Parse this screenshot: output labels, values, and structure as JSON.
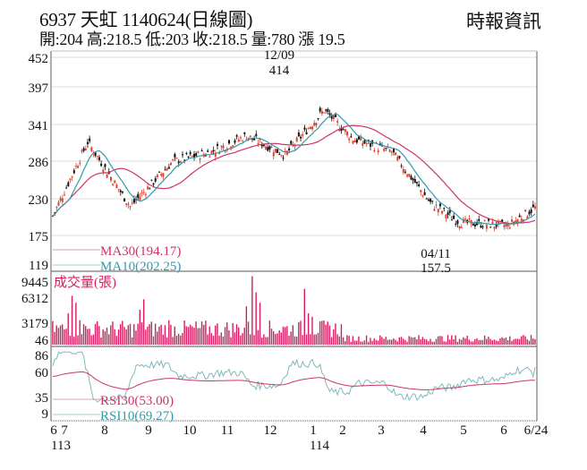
{
  "header": {
    "title": "6937  天虹 1140624(日線圖)",
    "stats": "開:204 高:218.5 低:203 收:218.5 量:780 漲 19.5",
    "source": "時報資訊"
  },
  "colors": {
    "up": "#e8402a",
    "down": "#111111",
    "ma30": "#cc3366",
    "ma10": "#3399aa",
    "volume": "#d81b60",
    "grid": "#dddddd",
    "frame": "#777777"
  },
  "chart_data": [
    {
      "type": "candlestick",
      "title": "6937 天虹 1140624(日線圖)",
      "yticks": [
        452,
        397,
        341,
        286,
        230,
        175,
        119
      ],
      "ylim": [
        119,
        452
      ],
      "annotations": [
        {
          "label": "12/09",
          "value": "414",
          "type": "high"
        },
        {
          "label": "04/11",
          "value": "157.5",
          "type": "low"
        }
      ],
      "legend": [
        {
          "name": "MA30",
          "value": "MA30(194.17)",
          "color": "#cc3366"
        },
        {
          "name": "MA10",
          "value": "MA10(202.25)",
          "color": "#3399aa"
        }
      ],
      "close_approx": {
        "x": [
          "6/113",
          "7",
          "8",
          "9",
          "10",
          "11",
          "12",
          "1/114",
          "2",
          "3",
          "4",
          "5",
          "6",
          "6/24"
        ],
        "values": [
          205,
          310,
          225,
          285,
          300,
          330,
          300,
          370,
          325,
          300,
          240,
          195,
          190,
          218.5
        ]
      },
      "last": {
        "open": 204,
        "high": 218.5,
        "low": 203,
        "close": 218.5,
        "volume": 780,
        "change": 19.5
      }
    },
    {
      "type": "bar",
      "title": "成交量(張)",
      "yticks": [
        9445,
        6312,
        3179,
        46
      ],
      "ylim": [
        46,
        9445
      ]
    },
    {
      "type": "line",
      "title": "RSI",
      "yticks": [
        86,
        60,
        35,
        9
      ],
      "ylim": [
        9,
        86
      ],
      "series": [
        {
          "name": "RSI30",
          "label": "RSI30(53.00)",
          "color": "#cc3366"
        },
        {
          "name": "RSI10",
          "label": "RSI10(69.27)",
          "color": "#3399aa"
        }
      ]
    }
  ],
  "xaxis": {
    "ticks": [
      "6",
      "7",
      "8",
      "9",
      "10",
      "11",
      "12",
      "1",
      "2",
      "3",
      "4",
      "5",
      "6",
      "6/24"
    ],
    "year_labels": [
      "113",
      "114"
    ]
  },
  "labels": {
    "price_y": [
      "452",
      "397",
      "341",
      "286",
      "230",
      "175",
      "119"
    ],
    "vol_y": [
      "9445",
      "6312",
      "3179",
      "46"
    ],
    "rsi_y": [
      "86",
      "60",
      "35",
      "9"
    ],
    "high_date": "12/09",
    "high_val": "414",
    "low_date": "04/11",
    "low_val": "157.5",
    "ma30": "MA30(194.17)",
    "ma10": "MA10(202.25)",
    "vol_title": "成交量(張)",
    "rsi30": "RSI30(53.00)",
    "rsi10": "RSI10(69.27)",
    "x": [
      "6",
      "7",
      "8",
      "9",
      "10",
      "11",
      "12",
      "1",
      "2",
      "3",
      "4",
      "5",
      "6",
      "6/24"
    ],
    "y113": "113",
    "y114": "114"
  }
}
